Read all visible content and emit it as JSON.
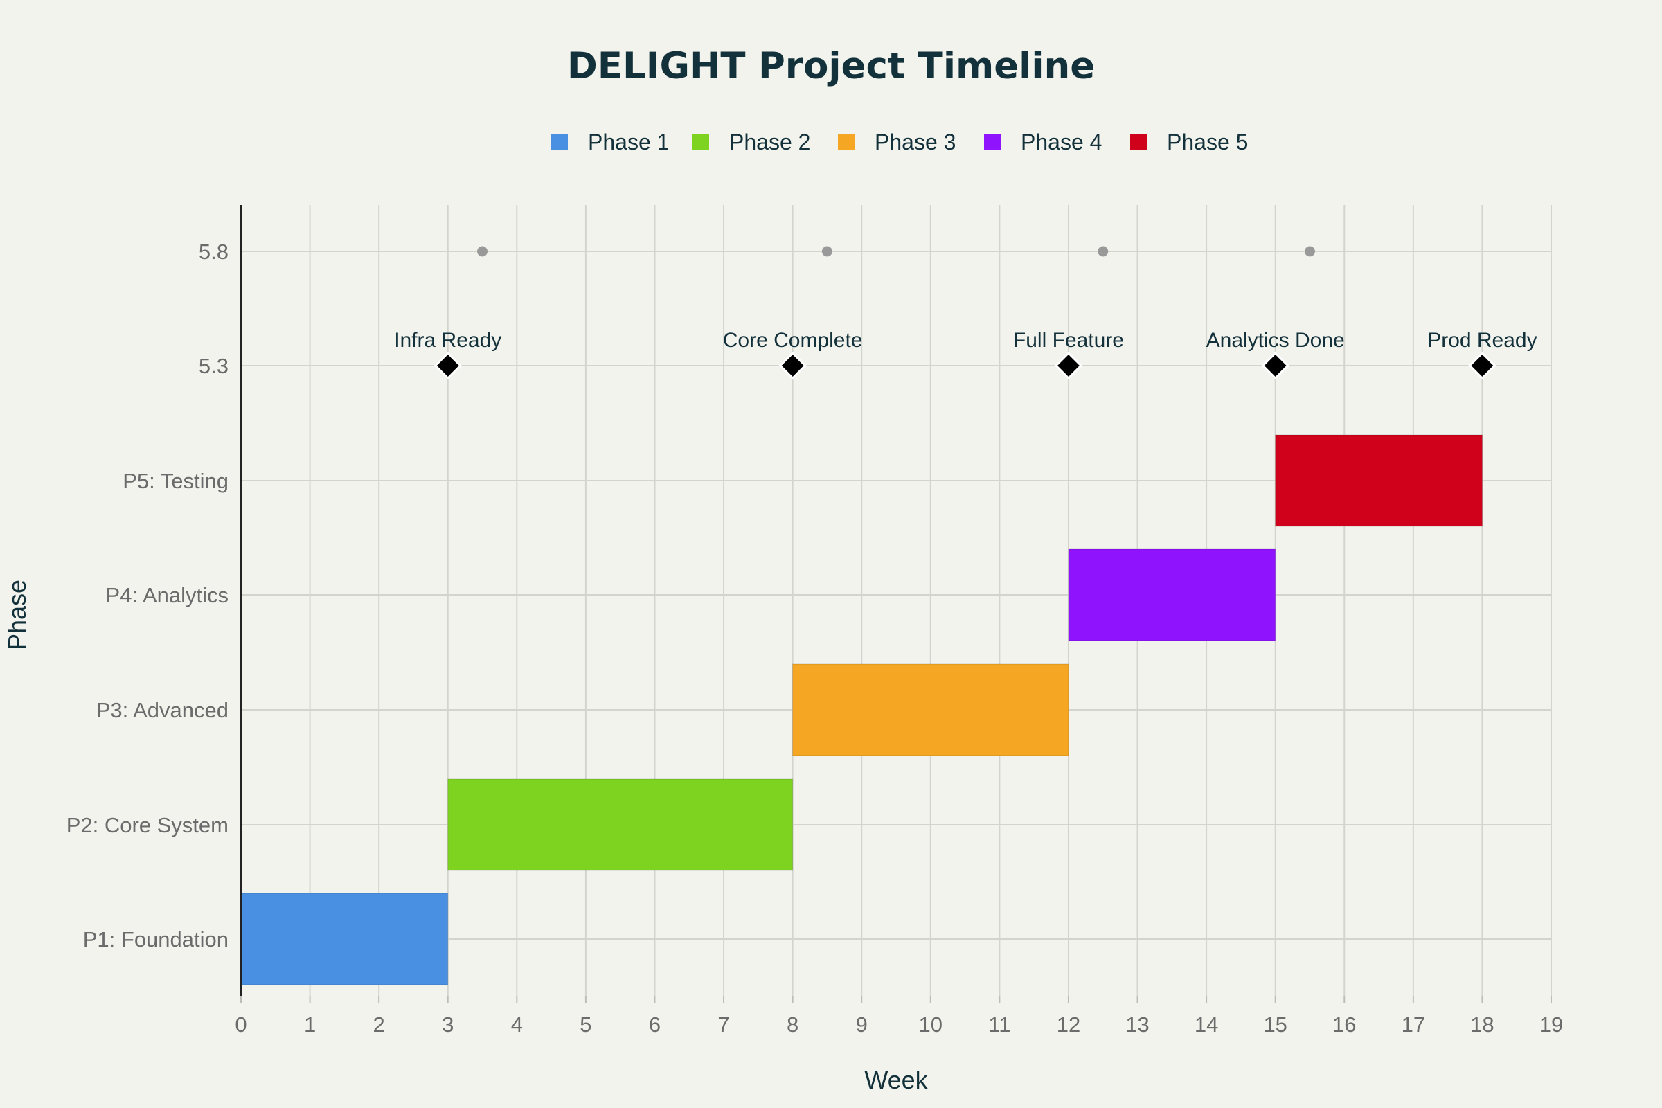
{
  "chart_data": {
    "type": "gantt",
    "title": "DELIGHT Project Timeline",
    "xlabel": "Week",
    "ylabel": "Phase",
    "xlim": [
      0,
      19
    ],
    "x_ticks": [
      0,
      1,
      2,
      3,
      4,
      5,
      6,
      7,
      8,
      9,
      10,
      11,
      12,
      13,
      14,
      15,
      16,
      17,
      18,
      19
    ],
    "y_categories": [
      "P1: Foundation",
      "P2: Core System",
      "P3: Advanced",
      "P4: Analytics",
      "P5: Testing",
      "5.3",
      "5.8"
    ],
    "legend": [
      {
        "name": "Phase 1",
        "color": "#4a90e2"
      },
      {
        "name": "Phase 2",
        "color": "#7ed321"
      },
      {
        "name": "Phase 3",
        "color": "#f5a623"
      },
      {
        "name": "Phase 4",
        "color": "#9013fe"
      },
      {
        "name": "Phase 5",
        "color": "#d0021b"
      }
    ],
    "tasks": [
      {
        "name": "P1: Foundation",
        "start": 0,
        "end": 3,
        "color": "#4a90e2"
      },
      {
        "name": "P2: Core System",
        "start": 3,
        "end": 8,
        "color": "#7ed321"
      },
      {
        "name": "P3: Advanced",
        "start": 8,
        "end": 12,
        "color": "#f5a623"
      },
      {
        "name": "P4: Analytics",
        "start": 12,
        "end": 15,
        "color": "#9013fe"
      },
      {
        "name": "P5: Testing",
        "start": 15,
        "end": 18,
        "color": "#d0021b"
      }
    ],
    "milestones": [
      {
        "label": "Infra Ready",
        "x": 3,
        "y": 5.3
      },
      {
        "label": "Core Complete",
        "x": 8,
        "y": 5.3
      },
      {
        "label": "Full Feature",
        "x": 12,
        "y": 5.3
      },
      {
        "label": "Analytics Done",
        "x": 15,
        "y": 5.3
      },
      {
        "label": "Prod Ready",
        "x": 18,
        "y": 5.3
      }
    ],
    "markers": [
      {
        "x": 3.5,
        "y": 5.8
      },
      {
        "x": 8.5,
        "y": 5.8
      },
      {
        "x": 12.5,
        "y": 5.8
      },
      {
        "x": 15.5,
        "y": 5.8
      }
    ],
    "grid": true,
    "legend_position": "top-center"
  }
}
